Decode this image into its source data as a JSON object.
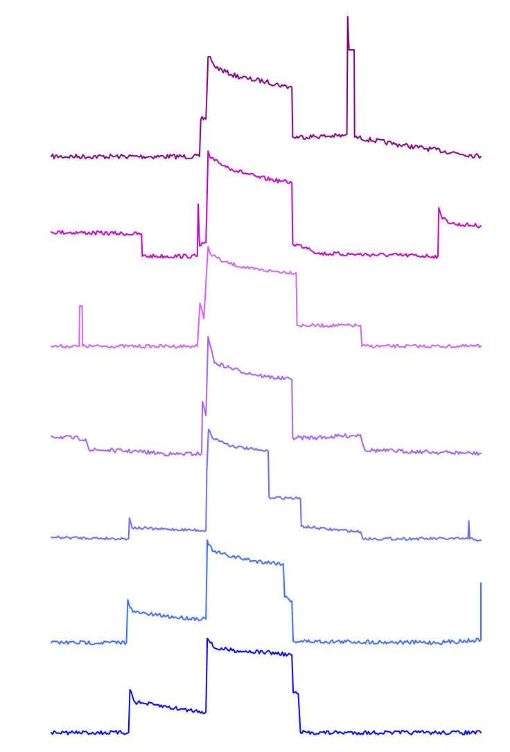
{
  "chart_data": {
    "type": "line",
    "layout": "stacked-offset",
    "axes_visible": false,
    "grid": false,
    "legend": "none",
    "x_range": [
      0,
      100
    ],
    "y_range": [
      0,
      1080
    ],
    "series": [
      {
        "color": "#800080",
        "baseline": 226,
        "noise": 3.5,
        "points": [
          [
            0,
            226
          ],
          [
            16,
            226
          ],
          [
            34.5,
            226
          ],
          [
            34.8,
            172
          ],
          [
            36,
            172
          ],
          [
            36.5,
            82
          ],
          [
            37,
            82
          ],
          [
            38,
            96
          ],
          [
            42,
            108
          ],
          [
            46,
            114
          ],
          [
            50,
            118
          ],
          [
            54,
            124
          ],
          [
            56,
            126
          ],
          [
            56.2,
            198
          ],
          [
            68,
            196
          ],
          [
            68.8,
            194
          ],
          [
            69,
            24
          ],
          [
            69.3,
            72
          ],
          [
            70,
            72
          ],
          [
            70.5,
            72
          ],
          [
            70.6,
            198
          ],
          [
            80,
            208
          ],
          [
            100,
            226
          ]
        ]
      },
      {
        "color": "#C000C0",
        "baseline": 370,
        "noise": 3,
        "points": [
          [
            0,
            335
          ],
          [
            21,
            338
          ],
          [
            21.2,
            370
          ],
          [
            34,
            370
          ],
          [
            34.2,
            295
          ],
          [
            34.5,
            355
          ],
          [
            36,
            350
          ],
          [
            36.5,
            218
          ],
          [
            37,
            228
          ],
          [
            38,
            232
          ],
          [
            42,
            244
          ],
          [
            48,
            256
          ],
          [
            54,
            262
          ],
          [
            56,
            264
          ],
          [
            56.2,
            352
          ],
          [
            60,
            358
          ],
          [
            62,
            366
          ],
          [
            90,
            370
          ],
          [
            90.2,
            300
          ],
          [
            91,
            316
          ],
          [
            94,
            324
          ],
          [
            100,
            326
          ]
        ]
      },
      {
        "color": "#D060F0",
        "baseline": 500,
        "noise": 2.5,
        "points": [
          [
            0,
            500
          ],
          [
            6.5,
            500
          ],
          [
            6.6,
            442
          ],
          [
            7.2,
            442
          ],
          [
            7.3,
            500
          ],
          [
            34,
            500
          ],
          [
            34.6,
            438
          ],
          [
            35.5,
            460
          ],
          [
            36.5,
            356
          ],
          [
            37,
            366
          ],
          [
            40,
            378
          ],
          [
            46,
            388
          ],
          [
            52,
            392
          ],
          [
            57,
            394
          ],
          [
            57.2,
            470
          ],
          [
            65,
            470
          ],
          [
            72,
            470
          ],
          [
            72.3,
            500
          ],
          [
            100,
            500
          ]
        ]
      },
      {
        "color": "#A060F0",
        "baseline": 655,
        "noise": 3,
        "points": [
          [
            0,
            630
          ],
          [
            8,
            634
          ],
          [
            8.8,
            650
          ],
          [
            12,
            650
          ],
          [
            20,
            652
          ],
          [
            28,
            656
          ],
          [
            35,
            655
          ],
          [
            35.2,
            580
          ],
          [
            36,
            600
          ],
          [
            36.5,
            486
          ],
          [
            37,
            500
          ],
          [
            38,
            524
          ],
          [
            44,
            536
          ],
          [
            50,
            544
          ],
          [
            56,
            548
          ],
          [
            56.2,
            632
          ],
          [
            62,
            632
          ],
          [
            72,
            628
          ],
          [
            73,
            650
          ],
          [
            100,
            655
          ]
        ]
      },
      {
        "color": "#6A6AF0",
        "baseline": 778,
        "noise": 2,
        "points": [
          [
            0,
            776
          ],
          [
            18,
            778
          ],
          [
            18.2,
            748
          ],
          [
            18.8,
            762
          ],
          [
            25,
            764
          ],
          [
            36,
            766
          ],
          [
            36.2,
            680
          ],
          [
            36.6,
            620
          ],
          [
            37.5,
            632
          ],
          [
            42,
            644
          ],
          [
            48,
            650
          ],
          [
            50.5,
            652
          ],
          [
            50.7,
            718
          ],
          [
            58,
            720
          ],
          [
            58.2,
            760
          ],
          [
            64,
            764
          ],
          [
            72,
            768
          ],
          [
            72.5,
            778
          ],
          [
            97,
            778
          ],
          [
            97.2,
            752
          ],
          [
            97.4,
            778
          ],
          [
            100,
            780
          ]
        ]
      },
      {
        "color": "#3B6CF0",
        "baseline": 928,
        "noise": 3,
        "points": [
          [
            0,
            928
          ],
          [
            17.5,
            928
          ],
          [
            17.8,
            866
          ],
          [
            19,
            884
          ],
          [
            24,
            888
          ],
          [
            30,
            892
          ],
          [
            36,
            894
          ],
          [
            36.3,
            780
          ],
          [
            37.5,
            796
          ],
          [
            41,
            802
          ],
          [
            47,
            810
          ],
          [
            54,
            814
          ],
          [
            54.3,
            862
          ],
          [
            56,
            868
          ],
          [
            56.3,
            926
          ],
          [
            90,
            928
          ],
          [
            100,
            924
          ],
          [
            100,
            842
          ]
        ]
      },
      {
        "color": "#0000E0",
        "baseline": 1058,
        "noise": 3,
        "points": [
          [
            0,
            1058
          ],
          [
            18,
            1058
          ],
          [
            18.3,
            996
          ],
          [
            19.5,
            1014
          ],
          [
            24,
            1018
          ],
          [
            30,
            1024
          ],
          [
            36,
            1028
          ],
          [
            36.3,
            922
          ],
          [
            38,
            936
          ],
          [
            44,
            940
          ],
          [
            50,
            942
          ],
          [
            56,
            946
          ],
          [
            56.3,
            1000
          ],
          [
            57.5,
            1002
          ],
          [
            58,
            1058
          ],
          [
            100,
            1058
          ]
        ]
      }
    ]
  }
}
